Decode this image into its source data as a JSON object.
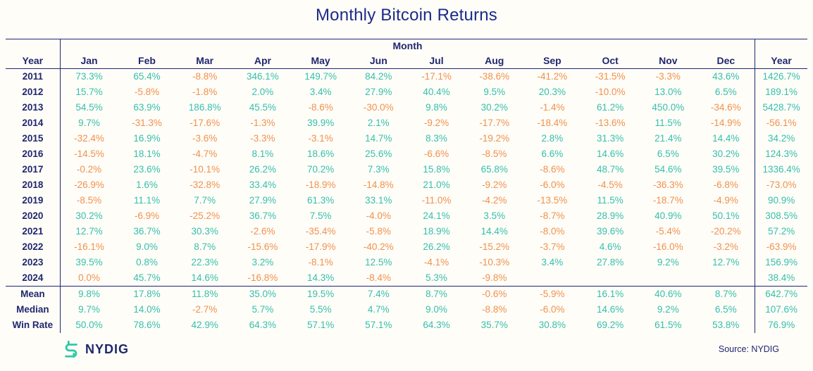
{
  "title": "Monthly Bitcoin Returns",
  "colors": {
    "positive_teal": "#35bfac",
    "negative_orange": "#ef914e",
    "navy": "#20276e",
    "title_navy": "#1b2b8a",
    "background": "#fffdf8",
    "logo_teal": "#2ec9a7"
  },
  "chart_data": {
    "type": "table",
    "title": "Monthly Bitcoin Returns",
    "col_group_label": "Month",
    "row_header": "Year",
    "total_column": "Year",
    "columns": [
      "Jan",
      "Feb",
      "Mar",
      "Apr",
      "May",
      "Jun",
      "Jul",
      "Aug",
      "Sep",
      "Oct",
      "Nov",
      "Dec"
    ],
    "rows": [
      {
        "label": "2011",
        "values": [
          "73.3%",
          "65.4%",
          "-8.8%",
          "346.1%",
          "149.7%",
          "84.2%",
          "-17.1%",
          "-38.6%",
          "-41.2%",
          "-31.5%",
          "-3.3%",
          "43.6%"
        ],
        "total": "1426.7%"
      },
      {
        "label": "2012",
        "values": [
          "15.7%",
          "-5.8%",
          "-1.8%",
          "2.0%",
          "3.4%",
          "27.9%",
          "40.4%",
          "9.5%",
          "20.3%",
          "-10.0%",
          "13.0%",
          "6.5%"
        ],
        "total": "189.1%"
      },
      {
        "label": "2013",
        "values": [
          "54.5%",
          "63.9%",
          "186.8%",
          "45.5%",
          "-8.6%",
          "-30.0%",
          "9.8%",
          "30.2%",
          "-1.4%",
          "61.2%",
          "450.0%",
          "-34.6%"
        ],
        "total": "5428.7%"
      },
      {
        "label": "2014",
        "values": [
          "9.7%",
          "-31.3%",
          "-17.6%",
          "-1.3%",
          "39.9%",
          "2.1%",
          "-9.2%",
          "-17.7%",
          "-18.4%",
          "-13.6%",
          "11.5%",
          "-14.9%"
        ],
        "total": "-56.1%"
      },
      {
        "label": "2015",
        "values": [
          "-32.4%",
          "16.9%",
          "-3.6%",
          "-3.3%",
          "-3.1%",
          "14.7%",
          "8.3%",
          "-19.2%",
          "2.8%",
          "31.3%",
          "21.4%",
          "14.4%"
        ],
        "total": "34.2%"
      },
      {
        "label": "2016",
        "values": [
          "-14.5%",
          "18.1%",
          "-4.7%",
          "8.1%",
          "18.6%",
          "25.6%",
          "-6.6%",
          "-8.5%",
          "6.6%",
          "14.6%",
          "6.5%",
          "30.2%"
        ],
        "total": "124.3%"
      },
      {
        "label": "2017",
        "values": [
          "-0.2%",
          "23.6%",
          "-10.1%",
          "26.2%",
          "70.2%",
          "7.3%",
          "15.8%",
          "65.8%",
          "-8.6%",
          "48.7%",
          "54.6%",
          "39.5%"
        ],
        "total": "1336.4%"
      },
      {
        "label": "2018",
        "values": [
          "-26.9%",
          "1.6%",
          "-32.8%",
          "33.4%",
          "-18.9%",
          "-14.8%",
          "21.0%",
          "-9.2%",
          "-6.0%",
          "-4.5%",
          "-36.3%",
          "-6.8%"
        ],
        "total": "-73.0%"
      },
      {
        "label": "2019",
        "values": [
          "-8.5%",
          "11.1%",
          "7.7%",
          "27.9%",
          "61.3%",
          "33.1%",
          "-11.0%",
          "-4.2%",
          "-13.5%",
          "11.5%",
          "-18.7%",
          "-4.9%"
        ],
        "total": "90.9%"
      },
      {
        "label": "2020",
        "values": [
          "30.2%",
          "-6.9%",
          "-25.2%",
          "36.7%",
          "7.5%",
          "-4.0%",
          "24.1%",
          "3.5%",
          "-8.7%",
          "28.9%",
          "40.9%",
          "50.1%"
        ],
        "total": "308.5%"
      },
      {
        "label": "2021",
        "values": [
          "12.7%",
          "36.7%",
          "30.3%",
          "-2.6%",
          "-35.4%",
          "-5.8%",
          "18.9%",
          "14.4%",
          "-8.0%",
          "39.6%",
          "-5.4%",
          "-20.2%"
        ],
        "total": "57.2%"
      },
      {
        "label": "2022",
        "values": [
          "-16.1%",
          "9.0%",
          "8.7%",
          "-15.6%",
          "-17.9%",
          "-40.2%",
          "26.2%",
          "-15.2%",
          "-3.7%",
          "4.6%",
          "-16.0%",
          "-3.2%"
        ],
        "total": "-63.9%"
      },
      {
        "label": "2023",
        "values": [
          "39.5%",
          "0.8%",
          "22.3%",
          "3.2%",
          "-8.1%",
          "12.5%",
          "-4.1%",
          "-10.3%",
          "3.4%",
          "27.8%",
          "9.2%",
          "12.7%"
        ],
        "total": "156.9%"
      },
      {
        "label": "2024",
        "values": [
          "0.0%",
          "45.7%",
          "14.6%",
          "-16.8%",
          "14.3%",
          "-8.4%",
          "5.3%",
          "-9.8%",
          "",
          "",
          "",
          ""
        ],
        "total": "38.4%"
      }
    ],
    "summary_rows": [
      {
        "label": "Mean",
        "values": [
          "9.8%",
          "17.8%",
          "11.8%",
          "35.0%",
          "19.5%",
          "7.4%",
          "8.7%",
          "-0.6%",
          "-5.9%",
          "16.1%",
          "40.6%",
          "8.7%"
        ],
        "total": "642.7%"
      },
      {
        "label": "Median",
        "values": [
          "9.7%",
          "14.0%",
          "-2.7%",
          "5.7%",
          "5.5%",
          "4.7%",
          "9.0%",
          "-8.8%",
          "-6.0%",
          "14.6%",
          "9.2%",
          "6.5%"
        ],
        "total": "107.6%"
      },
      {
        "label": "Win Rate",
        "values": [
          "50.0%",
          "78.6%",
          "42.9%",
          "64.3%",
          "57.1%",
          "57.1%",
          "64.3%",
          "35.7%",
          "30.8%",
          "69.2%",
          "61.5%",
          "53.8%"
        ],
        "total": "76.9%"
      }
    ]
  },
  "footer": {
    "logo_text": "NYDIG",
    "source": "Source: NYDIG"
  }
}
